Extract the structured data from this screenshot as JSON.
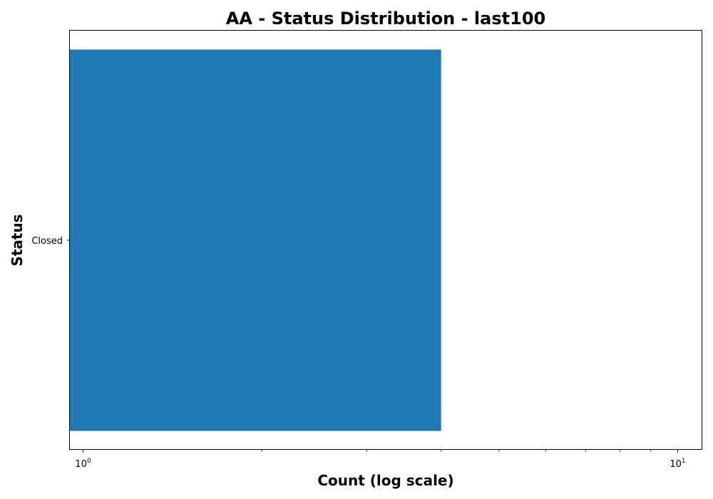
{
  "chart_data": {
    "type": "bar",
    "orientation": "horizontal",
    "title": "AA - Status Distribution - last100",
    "xlabel": "Count (log scale)",
    "ylabel": "Status",
    "x_scale": "log",
    "xlim": [
      0.95,
      11
    ],
    "x_major_ticks": [
      {
        "value": 1,
        "base": "10",
        "exp": "0"
      },
      {
        "value": 10,
        "base": "10",
        "exp": "1"
      }
    ],
    "categories": [
      "Closed"
    ],
    "values": [
      4
    ],
    "bar_color": "#1f77b4",
    "grid": false,
    "legend": "none"
  }
}
